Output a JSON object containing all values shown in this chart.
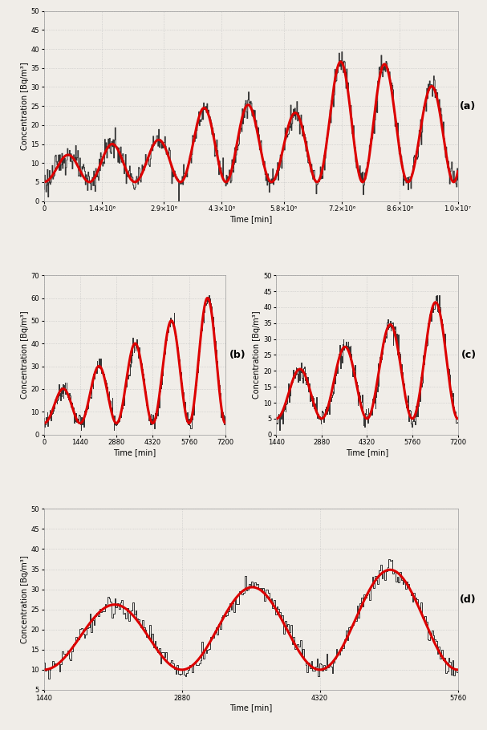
{
  "panel_a": {
    "xlim": [
      0,
      10000000.0
    ],
    "ylim": [
      0,
      50
    ],
    "xlabel": "Time [min]",
    "ylabel": "Concentration [Bq/m³]",
    "xticks": [
      0,
      1400000.0,
      2900000.0,
      4300000.0,
      5800000.0,
      7200000.0,
      8600000.0,
      10000000.0
    ],
    "xtick_labels": [
      "0",
      "1.4×10⁶",
      "2.9×10⁶",
      "4.3×10⁶",
      "5.8×10⁶",
      "7.2×10⁶",
      "8.6×10⁶",
      "1.0×10⁷"
    ],
    "yticks": [
      0,
      5,
      10,
      15,
      20,
      25,
      30,
      35,
      40,
      45,
      50
    ],
    "label": "(a)",
    "period": 1100000,
    "amp_profile": [
      5,
      5,
      10,
      14,
      12,
      16,
      18,
      22,
      25,
      22,
      18,
      22,
      25,
      20,
      18,
      22,
      26,
      22,
      18,
      20,
      24,
      20,
      16,
      20,
      26,
      22,
      18,
      16,
      12,
      10
    ],
    "base": 5
  },
  "panel_b": {
    "xlim": [
      0,
      7200
    ],
    "ylim": [
      0,
      70
    ],
    "xlabel": "Time [min]",
    "ylabel": "Concentration [Bq/m³]",
    "xticks": [
      0,
      1440,
      2880,
      4320,
      5760,
      7200
    ],
    "xtick_labels": [
      "0",
      "1440",
      "2880",
      "4320",
      "5760",
      "7200"
    ],
    "yticks": [
      0,
      10,
      20,
      30,
      40,
      50,
      60,
      70
    ],
    "label": "(b)",
    "period": 1440,
    "base": 5,
    "amp_start": 10,
    "amp_end": 60
  },
  "panel_c": {
    "xlim": [
      1440,
      7200
    ],
    "ylim": [
      0,
      50
    ],
    "xlabel": "Time [min]",
    "ylabel": "Concentration [Bq/m³]",
    "xticks": [
      1440,
      2880,
      4320,
      5760,
      7200
    ],
    "xtick_labels": [
      "1440",
      "2880",
      "4320",
      "5760",
      "7200"
    ],
    "yticks": [
      0,
      5,
      10,
      15,
      20,
      25,
      30,
      35,
      40,
      45,
      50
    ],
    "label": "(c)",
    "period": 1440,
    "base": 5,
    "amp_start": 12,
    "amp_end": 40
  },
  "panel_d": {
    "xlim": [
      1440,
      5760
    ],
    "ylim": [
      5,
      50
    ],
    "xlabel": "Time [min]",
    "ylabel": "Concentration [Bq/m³]",
    "xticks": [
      1440,
      2880,
      4320,
      5760
    ],
    "xtick_labels": [
      "1440",
      "2880",
      "4320",
      "5760"
    ],
    "yticks": [
      5,
      10,
      15,
      20,
      25,
      30,
      35,
      40,
      45,
      50
    ],
    "label": "(d)",
    "period": 1440,
    "base": 10,
    "amp_start": 14,
    "amp_end": 27
  },
  "black_color": "#333333",
  "red_color": "#dd0000",
  "grid_color": "#bbbbbb",
  "bg_color": "#f0ede8",
  "lw_black": 0.7,
  "lw_red": 2.2,
  "tick_fontsize": 6,
  "label_fontsize": 7,
  "axis_label_fontsize": 7
}
